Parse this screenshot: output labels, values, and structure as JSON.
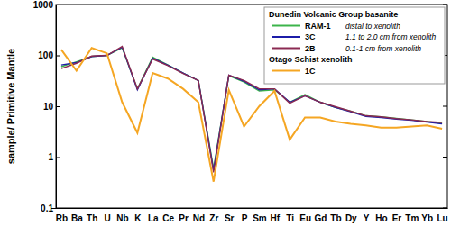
{
  "chart_data": {
    "type": "line",
    "y_label": "sample/ Primitive Mantle",
    "categories": [
      "Rb",
      "Ba",
      "Th",
      "U",
      "Nb",
      "K",
      "La",
      "Ce",
      "Pr",
      "Nd",
      "Zr",
      "Sr",
      "P",
      "Sm",
      "Hf",
      "Ti",
      "Eu",
      "Gd",
      "Tb",
      "Dy",
      "Y",
      "Ho",
      "Er",
      "Tm",
      "Yb",
      "Lu"
    ],
    "series": [
      {
        "name": "RAM-1",
        "description": "distal to xenolith",
        "group": "Dunedin Volcanic Group basanite",
        "color": "#3cb44b",
        "values": [
          60,
          75,
          95,
          100,
          140,
          22,
          92,
          65,
          45,
          32,
          0.6,
          40,
          30,
          20,
          21,
          12,
          17,
          12,
          9.5,
          8,
          6.5,
          6.2,
          5.8,
          5.4,
          5.0,
          4.6
        ]
      },
      {
        "name": "3C",
        "description": "1.1 to 2.0 cm from xenolith",
        "group": "Dunedin Volcanic Group basanite",
        "color": "#1c1ca8",
        "values": [
          65,
          72,
          95,
          100,
          145,
          21,
          88,
          64,
          45,
          32,
          0.55,
          41,
          31,
          21,
          22,
          12,
          16,
          12,
          9.5,
          7.8,
          6.3,
          6.0,
          5.6,
          5.3,
          4.9,
          4.5
        ]
      },
      {
        "name": "2B",
        "description": "0.1-1 cm from xenolith",
        "group": "Dunedin Volcanic Group basanite",
        "color": "#8b2a52",
        "values": [
          55,
          70,
          97,
          100,
          150,
          22,
          85,
          63,
          44,
          32,
          0.5,
          41,
          32,
          22,
          22,
          11.5,
          16,
          12,
          9.8,
          8,
          6.5,
          6.2,
          5.7,
          5.4,
          5.0,
          4.8
        ]
      },
      {
        "name": "1C",
        "group": "Otago Schist xenolith",
        "color": "#f5a623",
        "values": [
          130,
          50,
          140,
          110,
          12,
          3,
          45,
          35,
          22,
          12,
          0.33,
          21,
          4,
          10,
          20,
          2.2,
          6,
          6,
          5,
          4.5,
          4.2,
          3.8,
          3.8,
          4.0,
          4.2,
          3.6
        ]
      }
    ],
    "ylim": [
      0.1,
      1000
    ],
    "yticks": [
      0.1,
      1,
      10,
      100,
      1000
    ],
    "log": "y",
    "legend": "upper right"
  }
}
